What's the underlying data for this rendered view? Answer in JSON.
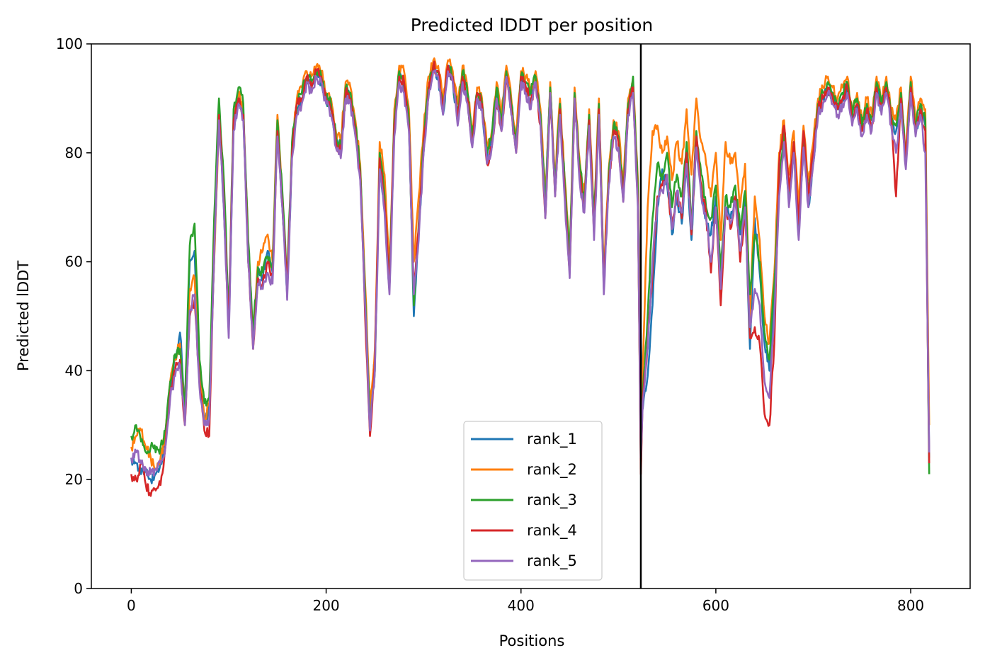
{
  "chart_data": {
    "type": "line",
    "title": "Predicted lDDT per position",
    "xlabel": "Positions",
    "ylabel": "Predicted lDDT",
    "xlim": [
      -41,
      861
    ],
    "ylim": [
      0,
      100
    ],
    "xticks": [
      0,
      200,
      400,
      600,
      800
    ],
    "yticks": [
      0,
      20,
      40,
      60,
      80,
      100
    ],
    "grid": false,
    "legend_position": "lower center",
    "vertical_line": {
      "x": 523,
      "color": "#000000"
    },
    "anchors_x": [
      0,
      5,
      10,
      15,
      20,
      25,
      30,
      35,
      40,
      45,
      50,
      55,
      60,
      65,
      70,
      75,
      80,
      85,
      90,
      95,
      100,
      105,
      110,
      115,
      120,
      125,
      130,
      135,
      140,
      145,
      150,
      155,
      160,
      165,
      170,
      175,
      180,
      185,
      190,
      195,
      200,
      205,
      210,
      215,
      220,
      225,
      230,
      235,
      240,
      245,
      250,
      255,
      260,
      265,
      270,
      275,
      280,
      285,
      290,
      295,
      300,
      305,
      310,
      315,
      320,
      325,
      330,
      335,
      340,
      345,
      350,
      355,
      360,
      365,
      370,
      375,
      380,
      385,
      390,
      395,
      400,
      405,
      410,
      415,
      420,
      425,
      430,
      435,
      440,
      445,
      450,
      455,
      460,
      465,
      470,
      475,
      480,
      485,
      490,
      495,
      500,
      505,
      510,
      515,
      520,
      523,
      525,
      530,
      535,
      540,
      545,
      550,
      555,
      560,
      565,
      570,
      575,
      580,
      585,
      590,
      595,
      600,
      605,
      610,
      615,
      620,
      625,
      630,
      635,
      640,
      645,
      650,
      655,
      660,
      665,
      670,
      675,
      680,
      685,
      690,
      695,
      700,
      705,
      710,
      715,
      720,
      725,
      730,
      735,
      740,
      745,
      750,
      755,
      760,
      765,
      770,
      775,
      780,
      785,
      790,
      795,
      800,
      805,
      810,
      815,
      819
    ],
    "series": [
      {
        "name": "rank_1",
        "color": "#1f77b4",
        "values": [
          24,
          23,
          21,
          22,
          20,
          21,
          23,
          27,
          37,
          42,
          47,
          34,
          60,
          62,
          40,
          30,
          33,
          60,
          88,
          70,
          47,
          85,
          90,
          87,
          62,
          45,
          58,
          57,
          62,
          58,
          85,
          70,
          54,
          80,
          88,
          90,
          94,
          92,
          95,
          93,
          90,
          88,
          82,
          80,
          91,
          90,
          84,
          76,
          55,
          32,
          42,
          78,
          70,
          55,
          85,
          94,
          92,
          85,
          50,
          65,
          80,
          91,
          96,
          94,
          87,
          96,
          93,
          86,
          94,
          90,
          82,
          90,
          88,
          79,
          82,
          91,
          85,
          95,
          88,
          81,
          94,
          92,
          90,
          94,
          86,
          70,
          92,
          73,
          88,
          73,
          60,
          91,
          77,
          70,
          86,
          66,
          88,
          55,
          75,
          84,
          82,
          72,
          88,
          92,
          72,
          46,
          33,
          39,
          52,
          70,
          77,
          74,
          65,
          72,
          67,
          78,
          64,
          82,
          73,
          68,
          65,
          72,
          56,
          70,
          68,
          72,
          65,
          72,
          44,
          68,
          58,
          45,
          40,
          53,
          75,
          84,
          72,
          80,
          65,
          82,
          70,
          78,
          88,
          90,
          92,
          90,
          88,
          90,
          92,
          86,
          89,
          84,
          88,
          85,
          92,
          88,
          92,
          86,
          84,
          90,
          78,
          92,
          84,
          88,
          85,
          24
        ]
      },
      {
        "name": "rank_2",
        "color": "#ff7f0e",
        "values": [
          26,
          28,
          29,
          26,
          24,
          22,
          24,
          28,
          38,
          42,
          45,
          32,
          55,
          57,
          40,
          31,
          34,
          60,
          86,
          72,
          48,
          86,
          91,
          88,
          63,
          46,
          60,
          62,
          65,
          60,
          87,
          72,
          55,
          81,
          90,
          92,
          95,
          94,
          96,
          95,
          91,
          90,
          84,
          82,
          93,
          92,
          86,
          78,
          56,
          33,
          44,
          82,
          76,
          58,
          88,
          96,
          95,
          88,
          60,
          72,
          84,
          94,
          97,
          96,
          90,
          97,
          95,
          89,
          96,
          92,
          84,
          92,
          90,
          81,
          84,
          93,
          87,
          96,
          90,
          83,
          95,
          94,
          92,
          95,
          88,
          72,
          93,
          75,
          90,
          75,
          62,
          92,
          79,
          72,
          88,
          68,
          90,
          58,
          77,
          86,
          84,
          74,
          90,
          93,
          75,
          35,
          40,
          70,
          84,
          85,
          80,
          83,
          75,
          82,
          78,
          88,
          76,
          90,
          82,
          78,
          72,
          80,
          64,
          82,
          78,
          80,
          70,
          78,
          50,
          72,
          64,
          50,
          45,
          58,
          80,
          86,
          76,
          84,
          70,
          85,
          75,
          82,
          90,
          92,
          94,
          92,
          90,
          92,
          94,
          88,
          91,
          86,
          90,
          87,
          94,
          90,
          94,
          88,
          86,
          92,
          80,
          94,
          86,
          90,
          88,
          30
        ]
      },
      {
        "name": "rank_3",
        "color": "#2ca02c",
        "values": [
          28,
          30,
          27,
          25,
          26,
          25,
          26,
          29,
          38,
          43,
          44,
          33,
          63,
          67,
          42,
          34,
          35,
          68,
          90,
          75,
          50,
          88,
          92,
          89,
          64,
          47,
          59,
          58,
          61,
          59,
          86,
          73,
          56,
          82,
          89,
          91,
          94,
          93,
          95,
          94,
          90,
          89,
          83,
          81,
          92,
          91,
          85,
          77,
          54,
          30,
          40,
          80,
          72,
          56,
          86,
          95,
          93,
          86,
          52,
          67,
          82,
          92,
          96,
          95,
          88,
          96,
          94,
          87,
          95,
          91,
          83,
          91,
          89,
          80,
          83,
          92,
          86,
          95,
          89,
          82,
          94,
          93,
          91,
          94,
          87,
          71,
          92,
          74,
          89,
          74,
          61,
          91,
          78,
          71,
          87,
          67,
          89,
          56,
          76,
          85,
          83,
          73,
          89,
          94,
          73,
          22,
          36,
          50,
          68,
          78,
          75,
          80,
          70,
          76,
          72,
          82,
          67,
          84,
          76,
          70,
          68,
          74,
          58,
          72,
          70,
          74,
          66,
          73,
          54,
          65,
          60,
          47,
          42,
          56,
          74,
          84,
          72,
          82,
          66,
          83,
          72,
          80,
          89,
          91,
          93,
          91,
          89,
          91,
          93,
          87,
          90,
          85,
          89,
          86,
          93,
          89,
          93,
          87,
          85,
          91,
          79,
          93,
          85,
          89,
          86,
          21
        ]
      },
      {
        "name": "rank_4",
        "color": "#d62728",
        "values": [
          21,
          20,
          23,
          19,
          17,
          18,
          19,
          26,
          36,
          40,
          42,
          30,
          50,
          53,
          38,
          29,
          28,
          62,
          87,
          71,
          48,
          86,
          90,
          87,
          60,
          44,
          57,
          56,
          60,
          57,
          84,
          71,
          55,
          80,
          89,
          90,
          94,
          92,
          95,
          94,
          90,
          88,
          82,
          80,
          91,
          90,
          84,
          76,
          50,
          28,
          42,
          79,
          71,
          55,
          85,
          94,
          93,
          85,
          55,
          66,
          81,
          91,
          96,
          95,
          88,
          96,
          94,
          86,
          94,
          90,
          82,
          91,
          89,
          78,
          81,
          90,
          84,
          94,
          88,
          80,
          94,
          92,
          89,
          93,
          85,
          68,
          91,
          72,
          88,
          72,
          58,
          90,
          76,
          70,
          86,
          65,
          88,
          56,
          74,
          84,
          82,
          71,
          88,
          92,
          71,
          21,
          35,
          45,
          58,
          72,
          74,
          75,
          66,
          73,
          68,
          80,
          65,
          83,
          74,
          69,
          58,
          70,
          52,
          70,
          66,
          72,
          60,
          70,
          46,
          48,
          45,
          32,
          30,
          45,
          78,
          85,
          73,
          82,
          67,
          84,
          72,
          80,
          88,
          90,
          92,
          90,
          88,
          90,
          92,
          86,
          89,
          84,
          88,
          85,
          92,
          88,
          92,
          86,
          72,
          90,
          78,
          92,
          84,
          88,
          84,
          23
        ]
      },
      {
        "name": "rank_5",
        "color": "#9467bd",
        "values": [
          24,
          25,
          23,
          22,
          21,
          22,
          23,
          26,
          35,
          39,
          41,
          30,
          51,
          54,
          37,
          30,
          31,
          61,
          86,
          70,
          46,
          84,
          89,
          86,
          60,
          44,
          56,
          55,
          58,
          56,
          83,
          70,
          53,
          79,
          87,
          89,
          93,
          91,
          94,
          93,
          89,
          87,
          81,
          79,
          90,
          89,
          83,
          75,
          52,
          29,
          40,
          77,
          69,
          54,
          83,
          93,
          91,
          84,
          54,
          64,
          80,
          90,
          95,
          94,
          87,
          95,
          93,
          85,
          93,
          89,
          81,
          90,
          88,
          78,
          81,
          90,
          84,
          94,
          87,
          80,
          93,
          91,
          88,
          93,
          85,
          68,
          91,
          72,
          87,
          71,
          57,
          90,
          75,
          69,
          85,
          64,
          87,
          54,
          74,
          83,
          81,
          71,
          87,
          91,
          70,
          24,
          34,
          44,
          60,
          71,
          73,
          76,
          66,
          73,
          69,
          78,
          66,
          81,
          72,
          68,
          60,
          70,
          55,
          70,
          67,
          71,
          62,
          70,
          48,
          55,
          52,
          38,
          35,
          50,
          72,
          82,
          70,
          80,
          64,
          81,
          70,
          78,
          87,
          89,
          91,
          89,
          87,
          89,
          91,
          85,
          88,
          83,
          87,
          84,
          91,
          87,
          91,
          85,
          80,
          89,
          77,
          91,
          83,
          87,
          80,
          25
        ]
      }
    ]
  }
}
